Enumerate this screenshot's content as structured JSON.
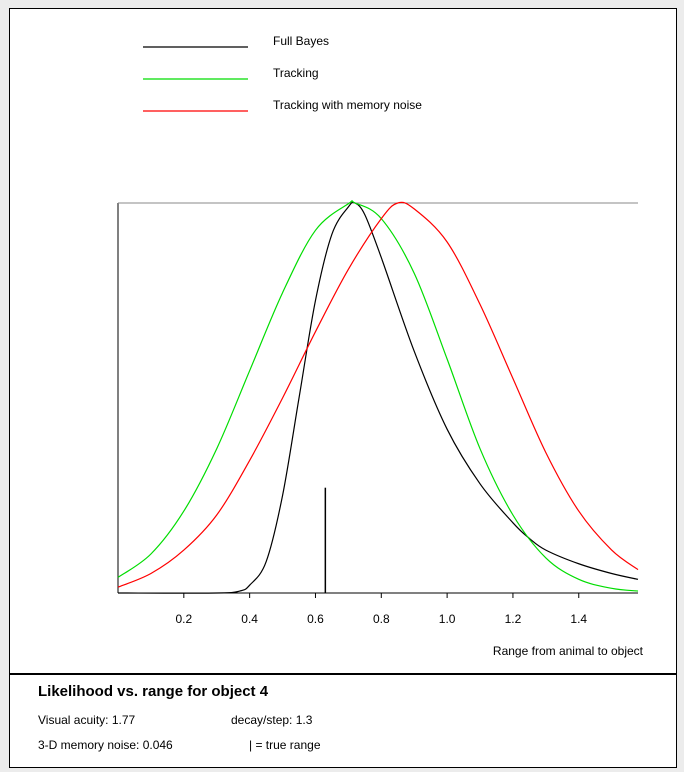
{
  "chart_data": {
    "type": "line",
    "title": "",
    "xlabel": "Range from animal to object",
    "ylabel": "",
    "xlim": [
      0.0,
      1.58
    ],
    "ylim": [
      0,
      1
    ],
    "x_ticks": [
      "0.2",
      "0.4",
      "0.6",
      "0.8",
      "1.0",
      "1.2",
      "1.4"
    ],
    "grid": false,
    "legend_position": "top-left",
    "series": [
      {
        "name": "Full Bayes",
        "color": "#000000",
        "x": [
          0.0,
          0.3,
          0.37,
          0.4,
          0.45,
          0.5,
          0.55,
          0.6,
          0.65,
          0.7,
          0.72,
          0.75,
          0.8,
          0.9,
          1.0,
          1.1,
          1.2,
          1.25,
          1.3,
          1.4,
          1.5,
          1.58
        ],
        "y": [
          0,
          0,
          0.005,
          0.02,
          0.08,
          0.25,
          0.5,
          0.75,
          0.92,
          0.99,
          1.0,
          0.97,
          0.86,
          0.62,
          0.42,
          0.28,
          0.18,
          0.14,
          0.11,
          0.075,
          0.05,
          0.035
        ]
      },
      {
        "name": "Tracking",
        "color": "#00dd00",
        "x": [
          0.0,
          0.1,
          0.2,
          0.3,
          0.4,
          0.5,
          0.6,
          0.7,
          0.72,
          0.8,
          0.9,
          1.0,
          1.1,
          1.2,
          1.3,
          1.4,
          1.5,
          1.58
        ],
        "y": [
          0.04,
          0.1,
          0.21,
          0.37,
          0.57,
          0.77,
          0.93,
          0.998,
          1.0,
          0.96,
          0.82,
          0.6,
          0.37,
          0.2,
          0.09,
          0.035,
          0.012,
          0.005
        ]
      },
      {
        "name": "Tracking with memory noise",
        "color": "#ff0000",
        "x": [
          0.0,
          0.1,
          0.2,
          0.3,
          0.4,
          0.5,
          0.6,
          0.7,
          0.8,
          0.85,
          0.9,
          1.0,
          1.1,
          1.2,
          1.3,
          1.4,
          1.5,
          1.58
        ],
        "y": [
          0.015,
          0.05,
          0.11,
          0.2,
          0.34,
          0.5,
          0.67,
          0.83,
          0.96,
          1.0,
          0.985,
          0.9,
          0.74,
          0.55,
          0.36,
          0.21,
          0.11,
          0.06
        ]
      }
    ],
    "true_range": 0.63,
    "true_range_marker_height": 0.27
  },
  "info": {
    "title": "Likelihood vs. range for object 4",
    "visual_acuity": "Visual acuity: 1.77",
    "decay_step": "decay/step: 1.3",
    "memory_noise": "3-D memory noise: 0.046",
    "marker_legend": "| = true range"
  }
}
